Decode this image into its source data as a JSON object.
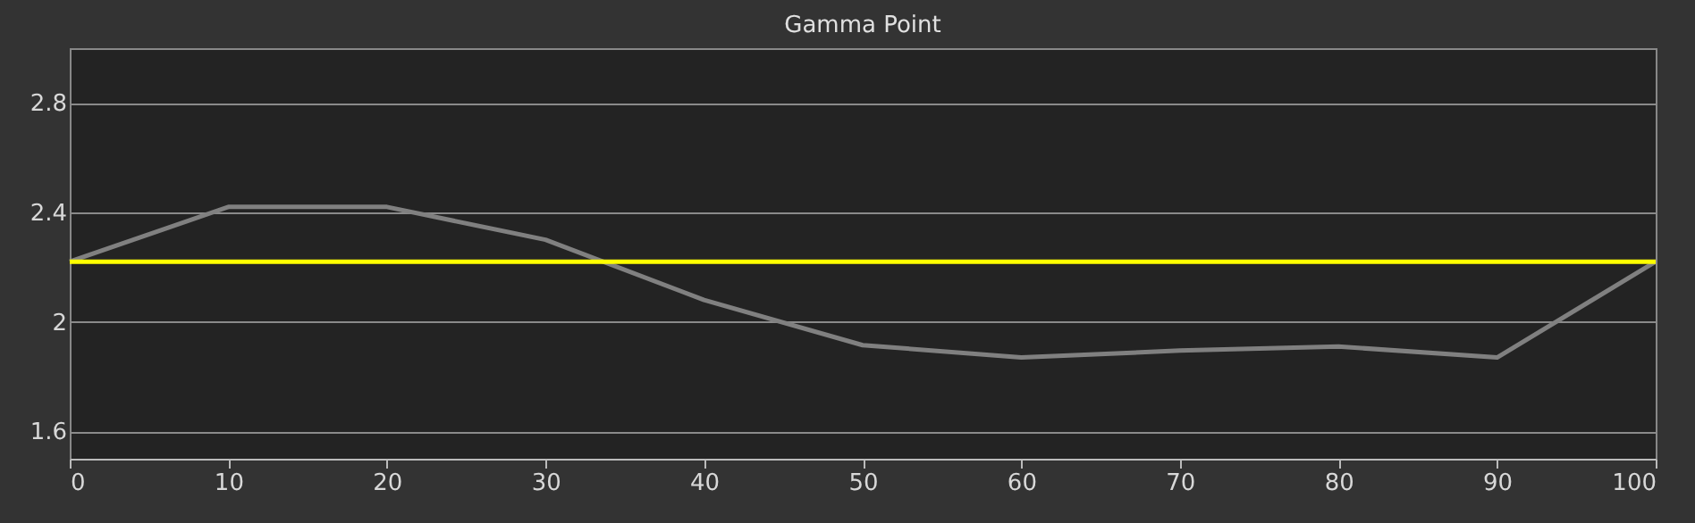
{
  "chart_data": {
    "type": "line",
    "title": "Gamma Point",
    "x": [
      0,
      10,
      20,
      30,
      40,
      50,
      60,
      70,
      80,
      90,
      100
    ],
    "series": [
      {
        "color": "#808080",
        "values": [
          2.22,
          2.42,
          2.42,
          2.3,
          2.08,
          1.915,
          1.87,
          1.895,
          1.91,
          1.87,
          2.22
        ]
      }
    ],
    "ref_lines": [
      {
        "axis": "y",
        "value": 2.22,
        "color": "#ffff00"
      }
    ],
    "xlim": [
      0,
      100
    ],
    "xticks": [
      0,
      10,
      20,
      30,
      40,
      50,
      60,
      70,
      80,
      90,
      100
    ],
    "ylim": [
      1.5,
      3.0
    ],
    "yticks": [
      1.6,
      2,
      2.4,
      2.8
    ],
    "grid": "y",
    "marker": "none",
    "line_style": "solid"
  }
}
